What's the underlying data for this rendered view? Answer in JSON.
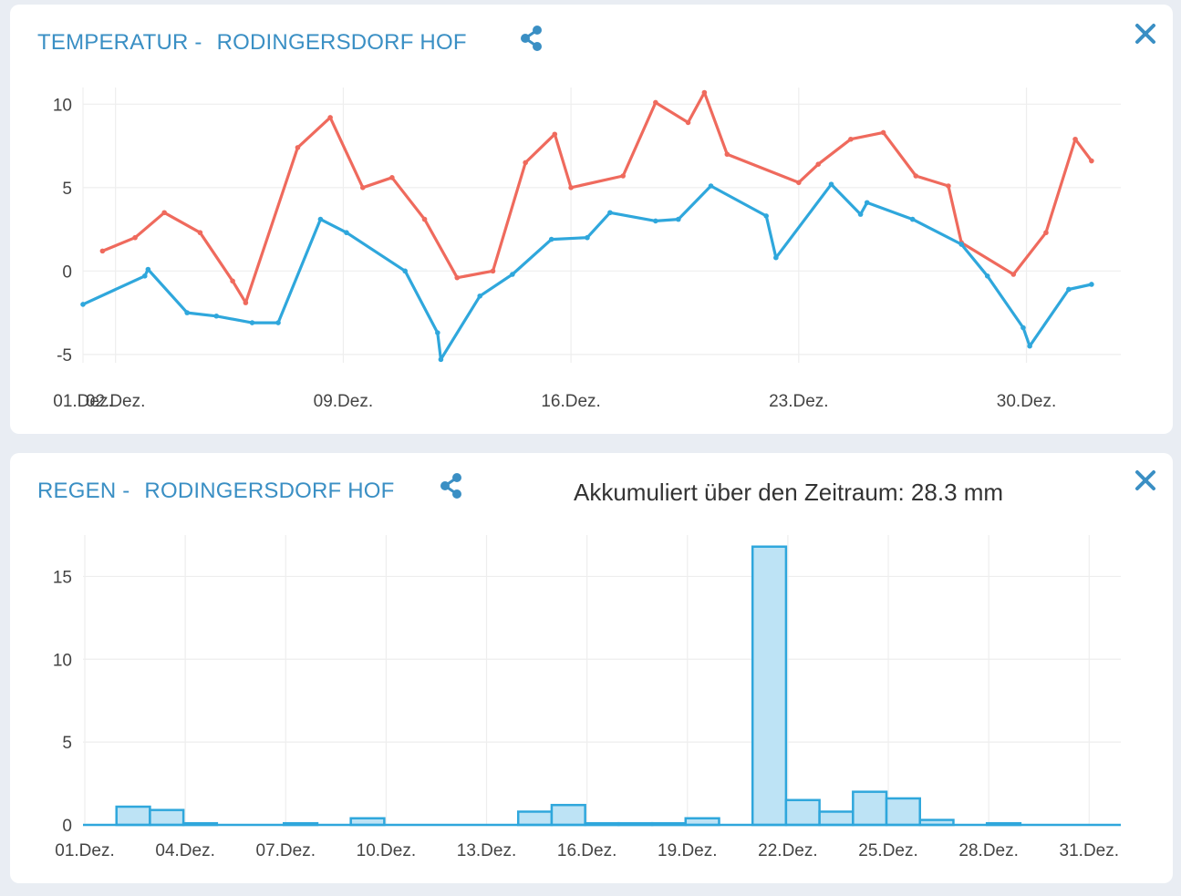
{
  "colors": {
    "title": "#3a8fc4",
    "max_line": "#ef6a5d",
    "min_line": "#2fa7dc",
    "bar_fill": "#bde3f5",
    "bar_stroke": "#2fa7dc",
    "grid": "#eeeeee"
  },
  "temperature_panel": {
    "title": "TEMPERATUR -",
    "station": "RODINGERSDORF HOF",
    "share_icon": "share-icon",
    "close_icon": "close-icon"
  },
  "rain_panel": {
    "title": "REGEN -",
    "station": "RODINGERSDORF HOF",
    "accumulated_label": "Akkumuliert über den Zeitraum: 28.3 mm",
    "share_icon": "share-icon",
    "close_icon": "close-icon"
  },
  "chart_data": [
    {
      "type": "line",
      "title": "TEMPERATUR - RODINGERSDORF HOF",
      "xlim": [
        0.0,
        31.9
      ],
      "ylim": [
        -5.5,
        11
      ],
      "yticks": [
        -5,
        0,
        5,
        10
      ],
      "xticks": [
        {
          "x": 0,
          "label": "01.Dez."
        },
        {
          "x": 1,
          "label": "02.Dez."
        },
        {
          "x": 8,
          "label": "09.Dez."
        },
        {
          "x": 15,
          "label": "16.Dez."
        },
        {
          "x": 22,
          "label": "23.Dez."
        },
        {
          "x": 29,
          "label": "30.Dez."
        }
      ],
      "grid": true,
      "series": [
        {
          "color": "#ef6a5d",
          "points": [
            [
              0.6,
              1.2
            ],
            [
              1.6,
              2.0
            ],
            [
              2.5,
              3.5
            ],
            [
              3.6,
              2.3
            ],
            [
              4.6,
              -0.6
            ],
            [
              5.0,
              -1.9
            ],
            [
              6.6,
              7.4
            ],
            [
              7.6,
              9.2
            ],
            [
              8.6,
              5.0
            ],
            [
              9.5,
              5.6
            ],
            [
              10.5,
              3.1
            ],
            [
              11.5,
              -0.4
            ],
            [
              12.6,
              0.0
            ],
            [
              13.6,
              6.5
            ],
            [
              14.5,
              8.2
            ],
            [
              15.0,
              5.0
            ],
            [
              16.6,
              5.7
            ],
            [
              17.6,
              10.1
            ],
            [
              18.6,
              8.9
            ],
            [
              19.1,
              10.7
            ],
            [
              19.8,
              7.0
            ],
            [
              22.0,
              5.3
            ],
            [
              22.6,
              6.4
            ],
            [
              23.6,
              7.9
            ],
            [
              24.6,
              8.3
            ],
            [
              25.6,
              5.7
            ],
            [
              26.6,
              5.1
            ],
            [
              27.0,
              1.7
            ],
            [
              28.6,
              -0.2
            ],
            [
              29.6,
              2.3
            ],
            [
              30.5,
              7.9
            ],
            [
              31.0,
              6.6
            ]
          ]
        },
        {
          "color": "#2fa7dc",
          "points": [
            [
              0.0,
              -2.0
            ],
            [
              1.9,
              -0.3
            ],
            [
              2.0,
              0.1
            ],
            [
              3.2,
              -2.5
            ],
            [
              4.1,
              -2.7
            ],
            [
              5.2,
              -3.1
            ],
            [
              6.0,
              -3.1
            ],
            [
              7.3,
              3.1
            ],
            [
              8.1,
              2.3
            ],
            [
              9.9,
              0.0
            ],
            [
              10.9,
              -3.7
            ],
            [
              11.0,
              -5.3
            ],
            [
              12.2,
              -1.5
            ],
            [
              13.2,
              -0.2
            ],
            [
              14.4,
              1.9
            ],
            [
              15.5,
              2.0
            ],
            [
              16.2,
              3.5
            ],
            [
              17.6,
              3.0
            ],
            [
              18.3,
              3.1
            ],
            [
              19.3,
              5.1
            ],
            [
              21.0,
              3.3
            ],
            [
              21.3,
              0.8
            ],
            [
              23.0,
              5.2
            ],
            [
              23.9,
              3.4
            ],
            [
              24.1,
              4.1
            ],
            [
              25.5,
              3.1
            ],
            [
              27.0,
              1.6
            ],
            [
              27.8,
              -0.3
            ],
            [
              28.9,
              -3.4
            ],
            [
              29.1,
              -4.5
            ],
            [
              30.3,
              -1.1
            ],
            [
              31.0,
              -0.8
            ]
          ]
        }
      ]
    },
    {
      "type": "bar",
      "title": "REGEN - RODINGERSDORF HOF",
      "ylim": [
        0,
        17.5
      ],
      "yticks": [
        0,
        5,
        10,
        15
      ],
      "grid": true,
      "categories": [
        "01.Dez.",
        "02.Dez.",
        "03.Dez.",
        "04.Dez.",
        "05.Dez.",
        "06.Dez.",
        "07.Dez.",
        "08.Dez.",
        "09.Dez.",
        "10.Dez.",
        "11.Dez.",
        "12.Dez.",
        "13.Dez.",
        "14.Dez.",
        "15.Dez.",
        "16.Dez.",
        "17.Dez.",
        "18.Dez.",
        "19.Dez.",
        "20.Dez.",
        "21.Dez.",
        "22.Dez.",
        "23.Dez.",
        "24.Dez.",
        "25.Dez.",
        "26.Dez.",
        "27.Dez.",
        "28.Dez.",
        "29.Dez.",
        "30.Dez.",
        "31.Dez."
      ],
      "values": [
        0.0,
        1.1,
        0.9,
        0.1,
        0.0,
        0.0,
        0.1,
        0.0,
        0.4,
        0.0,
        0.0,
        0.0,
        0.0,
        0.8,
        1.2,
        0.1,
        0.1,
        0.1,
        0.4,
        0.0,
        16.8,
        1.5,
        0.8,
        2.0,
        1.6,
        0.3,
        0.0,
        0.1,
        0.0,
        0.0,
        0.0
      ],
      "xtick_labels": [
        "01.Dez.",
        "04.Dez.",
        "07.Dez.",
        "10.Dez.",
        "13.Dez.",
        "16.Dez.",
        "19.Dez.",
        "22.Dez.",
        "25.Dez.",
        "28.Dez.",
        "31.Dez."
      ]
    }
  ]
}
